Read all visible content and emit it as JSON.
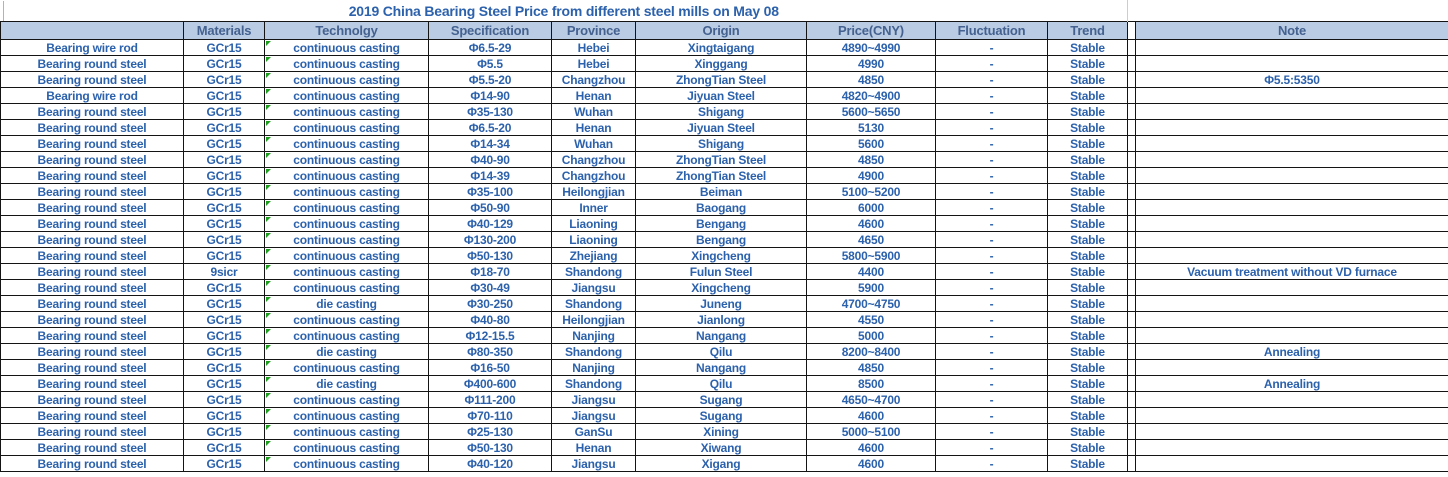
{
  "title": "2019 China Bearing Steel Price from different steel mills on May 08",
  "table": {
    "column_headers": [
      "",
      "Materials",
      "Technolgy",
      "Specification",
      "Province",
      "Origin",
      "Price(CNY)",
      "Fluctuation",
      "Trend",
      "Note"
    ],
    "column_keys": [
      "product",
      "materials",
      "technology",
      "specification",
      "province",
      "origin",
      "price",
      "fluctuation",
      "trend",
      "note"
    ],
    "rows": [
      [
        "Bearing wire rod",
        "GCr15",
        "continuous casting",
        "Φ6.5-29",
        "Hebei",
        "Xingtaigang",
        "4890~4990",
        "-",
        "Stable",
        ""
      ],
      [
        "Bearing round steel",
        "GCr15",
        "continuous casting",
        "Φ5.5",
        "Hebei",
        "Xinggang",
        "4990",
        "-",
        "Stable",
        ""
      ],
      [
        "Bearing round steel",
        "GCr15",
        "continuous casting",
        "Φ5.5-20",
        "Changzhou",
        "ZhongTian Steel",
        "4850",
        "-",
        "Stable",
        "Φ5.5:5350"
      ],
      [
        "Bearing wire rod",
        "GCr15",
        "continuous casting",
        "Φ14-90",
        "Henan",
        "Jiyuan Steel",
        "4820~4900",
        "-",
        "Stable",
        ""
      ],
      [
        "Bearing round steel",
        "GCr15",
        "continuous casting",
        "Φ35-130",
        "Wuhan",
        "Shigang",
        "5600~5650",
        "-",
        "Stable",
        ""
      ],
      [
        "Bearing round steel",
        "GCr15",
        "continuous casting",
        "Φ6.5-20",
        "Henan",
        "Jiyuan Steel",
        "5130",
        "-",
        "Stable",
        ""
      ],
      [
        "Bearing round steel",
        "GCr15",
        "continuous casting",
        "Φ14-34",
        "Wuhan",
        "Shigang",
        "5600",
        "-",
        "Stable",
        ""
      ],
      [
        "Bearing round steel",
        "GCr15",
        "continuous casting",
        "Φ40-90",
        "Changzhou",
        "ZhongTian Steel",
        "4850",
        "-",
        "Stable",
        ""
      ],
      [
        "Bearing round steel",
        "GCr15",
        "continuous casting",
        "Φ14-39",
        "Changzhou",
        "ZhongTian Steel",
        "4900",
        "-",
        "Stable",
        ""
      ],
      [
        "Bearing round steel",
        "GCr15",
        "continuous casting",
        "Φ35-100",
        "Heilongjian",
        "Beiman",
        "5100~5200",
        "-",
        "Stable",
        ""
      ],
      [
        "Bearing round steel",
        "GCr15",
        "continuous casting",
        "Φ50-90",
        "Inner",
        "Baogang",
        "6000",
        "-",
        "Stable",
        ""
      ],
      [
        "Bearing round steel",
        "GCr15",
        "continuous casting",
        "Φ40-129",
        "Liaoning",
        "Bengang",
        "4600",
        "-",
        "Stable",
        ""
      ],
      [
        "Bearing round steel",
        "GCr15",
        "continuous casting",
        "Φ130-200",
        "Liaoning",
        "Bengang",
        "4650",
        "-",
        "Stable",
        ""
      ],
      [
        "Bearing round steel",
        "GCr15",
        "continuous casting",
        "Φ50-130",
        "Zhejiang",
        "Xingcheng",
        "5800~5900",
        "-",
        "Stable",
        ""
      ],
      [
        "Bearing round steel",
        "9sicr",
        "continuous casting",
        "Φ18-70",
        "Shandong",
        "Fulun Steel",
        "4400",
        "-",
        "Stable",
        "Vacuum treatment without VD furnace"
      ],
      [
        "Bearing round steel",
        "GCr15",
        "continuous casting",
        "Φ30-49",
        "Jiangsu",
        "Xingcheng",
        "5900",
        "-",
        "Stable",
        ""
      ],
      [
        "Bearing round steel",
        "GCr15",
        "die casting",
        "Φ30-250",
        "Shandong",
        "Juneng",
        "4700~4750",
        "-",
        "Stable",
        ""
      ],
      [
        "Bearing round steel",
        "GCr15",
        "continuous casting",
        "Φ40-80",
        "Heilongjian",
        "Jianlong",
        "4550",
        "-",
        "Stable",
        ""
      ],
      [
        "Bearing round steel",
        "GCr15",
        "continuous casting",
        "Φ12-15.5",
        "Nanjing",
        "Nangang",
        "5000",
        "-",
        "Stable",
        ""
      ],
      [
        "Bearing round steel",
        "GCr15",
        "die casting",
        "Φ80-350",
        "Shandong",
        "Qilu",
        "8200~8400",
        "-",
        "Stable",
        "Annealing"
      ],
      [
        "Bearing round steel",
        "GCr15",
        "continuous casting",
        "Φ16-50",
        "Nanjing",
        "Nangang",
        "4850",
        "-",
        "Stable",
        ""
      ],
      [
        "Bearing round steel",
        "GCr15",
        "die casting",
        "Φ400-600",
        "Shandong",
        "Qilu",
        "8500",
        "-",
        "Stable",
        "Annealing"
      ],
      [
        "Bearing round steel",
        "GCr15",
        "continuous casting",
        "Φ111-200",
        "Jiangsu",
        "Sugang",
        "4650~4700",
        "-",
        "Stable",
        ""
      ],
      [
        "Bearing round steel",
        "GCr15",
        "continuous casting",
        "Φ70-110",
        "Jiangsu",
        "Sugang",
        "4600",
        "-",
        "Stable",
        ""
      ],
      [
        "Bearing round steel",
        "GCr15",
        "continuous casting",
        "Φ25-130",
        "GanSu",
        "Xining",
        "5000~5100",
        "-",
        "Stable",
        ""
      ],
      [
        "Bearing round steel",
        "GCr15",
        "continuous casting",
        "Φ50-130",
        "Henan",
        "Xiwang",
        "4600",
        "-",
        "Stable",
        ""
      ],
      [
        "Bearing round steel",
        "GCr15",
        "continuous casting",
        "Φ40-120",
        "Jiangsu",
        "Xigang",
        "4600",
        "-",
        "Stable",
        ""
      ]
    ]
  },
  "icons": {
    "technology_cell_corner": "excel-error-indicator-triangle"
  },
  "colors": {
    "header_fill": "#b9cce4",
    "header_text": "#44618f",
    "body_text": "#2c61ac",
    "grid_border": "#141414",
    "error_indicator_green": "#1f9d1f"
  }
}
